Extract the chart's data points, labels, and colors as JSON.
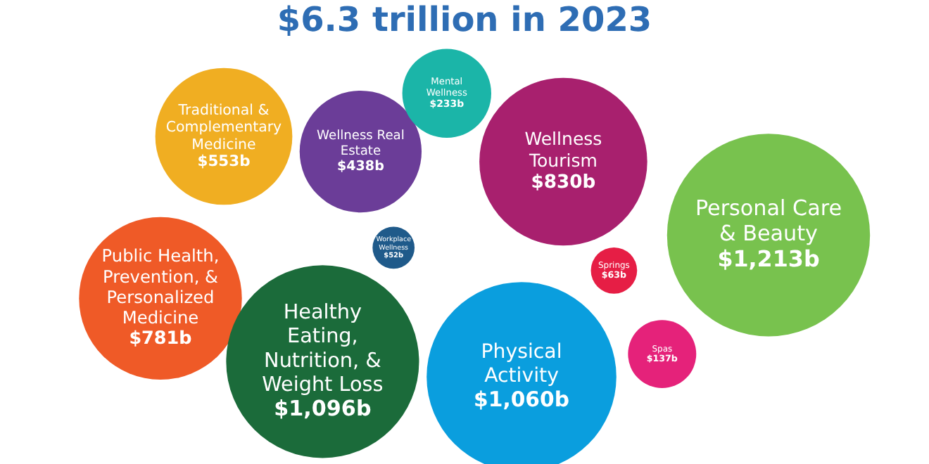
{
  "chart_data": {
    "type": "other",
    "title": "$6.3 trillion in 2023",
    "categories": [
      "Traditional & Complementary Medicine",
      "Wellness Real Estate",
      "Mental Wellness",
      "Wellness Tourism",
      "Personal Care & Beauty",
      "Public Health, Prevention, & Personalized Medicine",
      "Workplace Wellness",
      "Springs",
      "Healthy Eating, Nutrition, & Weight Loss",
      "Physical Activity",
      "Spas"
    ],
    "values": [
      553,
      438,
      233,
      830,
      1213,
      781,
      52,
      63,
      1096,
      1060,
      137
    ],
    "value_labels": [
      "$553b",
      "$438b",
      "$233b",
      "$830b",
      "$1,213b",
      "$781b",
      "$52b",
      "$63b",
      "$1,096b",
      "$1,060b",
      "$137b"
    ],
    "colors": [
      "#f0ae22",
      "#6b3d98",
      "#1bb5a8",
      "#a8206e",
      "#78c24e",
      "#ef5a27",
      "#1f5a8a",
      "#e61e45",
      "#1b6b3a",
      "#0a9ede",
      "#e5227a"
    ]
  }
}
